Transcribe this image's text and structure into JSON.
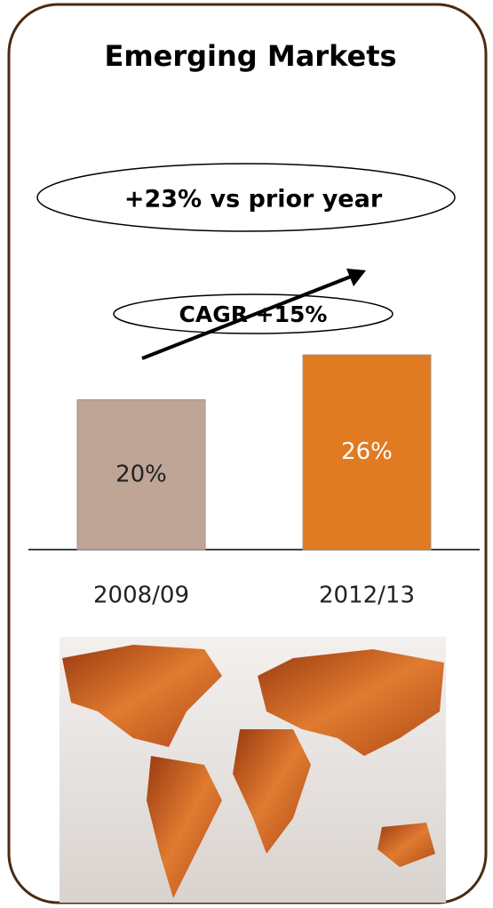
{
  "chart_data": {
    "type": "bar",
    "title": "Emerging Markets",
    "categories": [
      "2008/09",
      "2012/13"
    ],
    "values": [
      20,
      26
    ],
    "value_labels": [
      "20%",
      "26%"
    ],
    "colors": [
      "#bfa596",
      "#e07b22"
    ],
    "annotations": [
      "+23% vs prior year",
      "CAGR +15%"
    ]
  }
}
